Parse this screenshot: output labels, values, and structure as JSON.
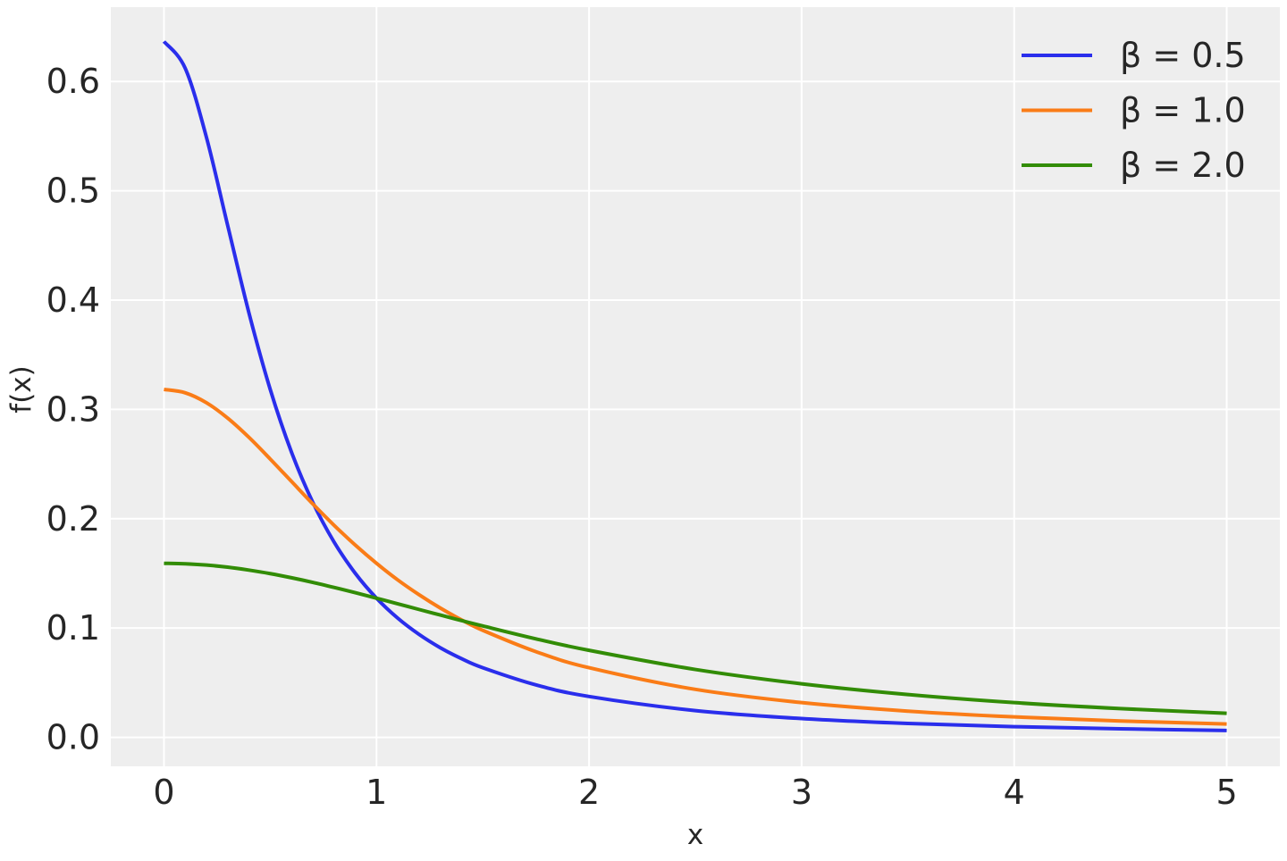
{
  "chart_data": {
    "type": "line",
    "title": "",
    "xlabel": "x",
    "ylabel": "f(x)",
    "xlim": [
      -0.25,
      5.25
    ],
    "ylim": [
      -0.0265,
      0.668
    ],
    "xticks": [
      0,
      1,
      2,
      3,
      4,
      5
    ],
    "xtick_labels": [
      "0",
      "1",
      "2",
      "3",
      "4",
      "5"
    ],
    "yticks": [
      0.0,
      0.1,
      0.2,
      0.3,
      0.4,
      0.5,
      0.6
    ],
    "ytick_labels": [
      "0.0",
      "0.1",
      "0.2",
      "0.3",
      "0.4",
      "0.5",
      "0.6"
    ],
    "grid": true,
    "legend_position": "top-right",
    "background": "#eeeeee",
    "x": [
      0,
      0.1,
      0.2,
      0.3,
      0.4,
      0.5,
      0.6,
      0.7,
      0.8,
      0.9,
      1.0,
      1.1,
      1.2,
      1.3,
      1.4,
      1.5,
      1.75,
      2.0,
      2.5,
      3.0,
      3.5,
      4.0,
      4.5,
      5.0
    ],
    "series": [
      {
        "name": "β = 0.5",
        "color": "#2a2eec",
        "values": [
          0.6366,
          0.6121,
          0.5488,
          0.4681,
          0.3882,
          0.3183,
          0.2609,
          0.2151,
          0.1788,
          0.1501,
          0.1273,
          0.109,
          0.0942,
          0.082,
          0.072,
          0.0637,
          0.048,
          0.0374,
          0.0245,
          0.0172,
          0.0127,
          0.0098,
          0.0078,
          0.0063
        ]
      },
      {
        "name": "β = 1.0",
        "color": "#fa7c17",
        "values": [
          0.3183,
          0.3152,
          0.3061,
          0.292,
          0.2744,
          0.2546,
          0.2341,
          0.2136,
          0.1941,
          0.1759,
          0.1592,
          0.144,
          0.1305,
          0.1183,
          0.1075,
          0.0979,
          0.0784,
          0.0637,
          0.0439,
          0.0318,
          0.024,
          0.0187,
          0.015,
          0.0122
        ]
      },
      {
        "name": "β = 2.0",
        "color": "#328c06",
        "values": [
          0.1592,
          0.1588,
          0.1576,
          0.1557,
          0.153,
          0.1498,
          0.146,
          0.1418,
          0.1372,
          0.1324,
          0.1273,
          0.1222,
          0.117,
          0.1119,
          0.1068,
          0.1019,
          0.0901,
          0.0796,
          0.0621,
          0.049,
          0.0392,
          0.0318,
          0.0263,
          0.022
        ]
      }
    ]
  }
}
